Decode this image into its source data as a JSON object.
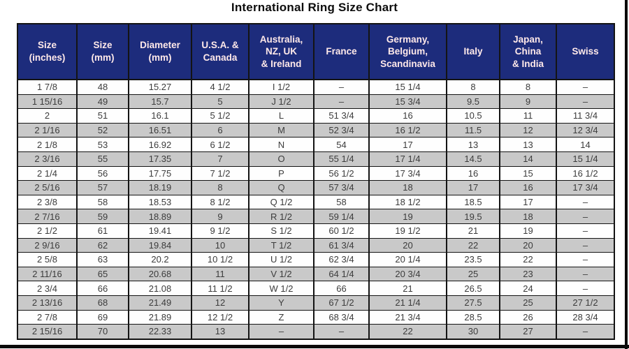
{
  "page": {
    "title": "International Ring Size Chart"
  },
  "chart_data": {
    "type": "table",
    "title": "International Ring Size Chart",
    "columns": [
      "Size\n(inches)",
      "Size\n(mm)",
      "Diameter\n(mm)",
      "U.S.A. &\nCanada",
      "Australia,\nNZ, UK\n& Ireland",
      "France",
      "Germany,\nBelgium,\nScandinavia",
      "Italy",
      "Japan,\nChina\n& India",
      "Swiss"
    ],
    "rows": [
      [
        "1 7/8",
        "48",
        "15.27",
        "4 1/2",
        "I 1/2",
        "–",
        "15 1/4",
        "8",
        "8",
        "–"
      ],
      [
        "1 15/16",
        "49",
        "15.7",
        "5",
        "J 1/2",
        "–",
        "15 3/4",
        "9.5",
        "9",
        "–"
      ],
      [
        "2",
        "51",
        "16.1",
        "5 1/2",
        "L",
        "51 3/4",
        "16",
        "10.5",
        "11",
        "11 3/4"
      ],
      [
        "2 1/16",
        "52",
        "16.51",
        "6",
        "M",
        "52 3/4",
        "16 1/2",
        "11.5",
        "12",
        "12 3/4"
      ],
      [
        "2 1/8",
        "53",
        "16.92",
        "6 1/2",
        "N",
        "54",
        "17",
        "13",
        "13",
        "14"
      ],
      [
        "2 3/16",
        "55",
        "17.35",
        "7",
        "O",
        "55 1/4",
        "17 1/4",
        "14.5",
        "14",
        "15 1/4"
      ],
      [
        "2 1/4",
        "56",
        "17.75",
        "7 1/2",
        "P",
        "56 1/2",
        "17 3/4",
        "16",
        "15",
        "16 1/2"
      ],
      [
        "2 5/16",
        "57",
        "18.19",
        "8",
        "Q",
        "57 3/4",
        "18",
        "17",
        "16",
        "17 3/4"
      ],
      [
        "2 3/8",
        "58",
        "18.53",
        "8 1/2",
        "Q 1/2",
        "58",
        "18 1/2",
        "18.5",
        "17",
        "–"
      ],
      [
        "2 7/16",
        "59",
        "18.89",
        "9",
        "R 1/2",
        "59 1/4",
        "19",
        "19.5",
        "18",
        "–"
      ],
      [
        "2 1/2",
        "61",
        "19.41",
        "9 1/2",
        "S 1/2",
        "60 1/2",
        "19 1/2",
        "21",
        "19",
        "–"
      ],
      [
        "2 9/16",
        "62",
        "19.84",
        "10",
        "T 1/2",
        "61 3/4",
        "20",
        "22",
        "20",
        "–"
      ],
      [
        "2 5/8",
        "63",
        "20.2",
        "10 1/2",
        "U 1/2",
        "62 3/4",
        "20 1/4",
        "23.5",
        "22",
        "–"
      ],
      [
        "2 11/16",
        "65",
        "20.68",
        "11",
        "V 1/2",
        "64 1/4",
        "20 3/4",
        "25",
        "23",
        "–"
      ],
      [
        "2 3/4",
        "66",
        "21.08",
        "11 1/2",
        "W 1/2",
        "66",
        "21",
        "26.5",
        "24",
        "–"
      ],
      [
        "2 13/16",
        "68",
        "21.49",
        "12",
        "Y",
        "67 1/2",
        "21 1/4",
        "27.5",
        "25",
        "27 1/2"
      ],
      [
        "2 7/8",
        "69",
        "21.89",
        "12 1/2",
        "Z",
        "68 3/4",
        "21 3/4",
        "28.5",
        "26",
        "28 3/4"
      ],
      [
        "2 15/16",
        "70",
        "22.33",
        "13",
        "–",
        "–",
        "22",
        "30",
        "27",
        "–"
      ]
    ]
  }
}
